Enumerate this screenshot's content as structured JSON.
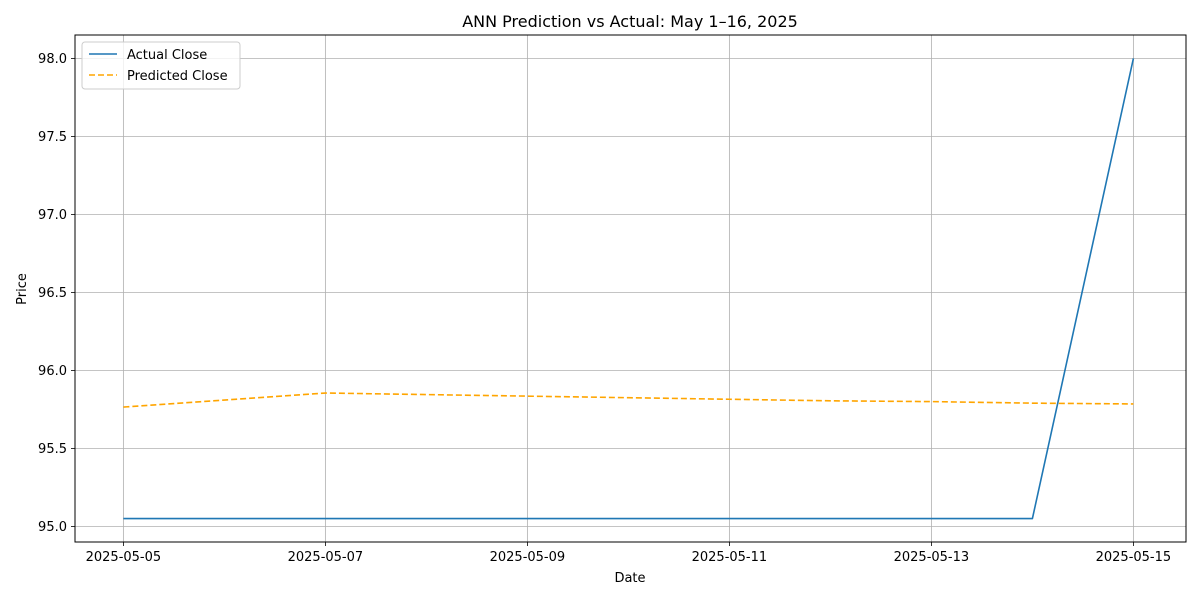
{
  "chart_data": {
    "type": "line",
    "title": "ANN Prediction vs Actual: May 1–16, 2025",
    "xlabel": "Date",
    "ylabel": "Price",
    "x": [
      "2025-05-05",
      "2025-05-06",
      "2025-05-07",
      "2025-05-08",
      "2025-05-09",
      "2025-05-10",
      "2025-05-11",
      "2025-05-12",
      "2025-05-13",
      "2025-05-14",
      "2025-05-15"
    ],
    "xticks": [
      "2025-05-05",
      "2025-05-07",
      "2025-05-09",
      "2025-05-11",
      "2025-05-13",
      "2025-05-15"
    ],
    "yticks": [
      "95.0",
      "95.5",
      "96.0",
      "96.5",
      "97.0",
      "97.5",
      "98.0"
    ],
    "xlim": [
      "2025-05-04 12:30",
      "2025-05-15 12:30"
    ],
    "ylim": [
      94.9,
      98.15
    ],
    "grid": true,
    "legend_position": "top-left",
    "series": [
      {
        "name": "Actual Close",
        "color": "#1f77b4",
        "style": "solid",
        "values": [
          95.05,
          95.05,
          95.05,
          95.05,
          95.05,
          95.05,
          95.05,
          95.05,
          95.05,
          95.05,
          98.0
        ]
      },
      {
        "name": "Predicted Close",
        "color": "#ffa500",
        "style": "dashed",
        "values": [
          95.765,
          95.81,
          95.855,
          95.845,
          95.835,
          95.825,
          95.815,
          95.805,
          95.8,
          95.79,
          95.785
        ]
      }
    ]
  }
}
